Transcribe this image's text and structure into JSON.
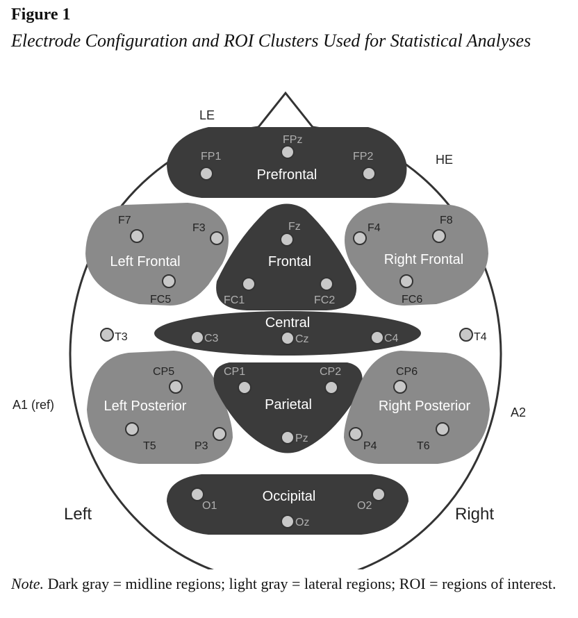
{
  "figure": {
    "label": "Figure 1",
    "title": "Electrode Configuration and ROI Clusters Used for Statistical Analyses"
  },
  "head": {
    "reference_labels": {
      "le": "LE",
      "he": "HE",
      "a1": "A1 (ref)",
      "a2": "A2"
    },
    "side_labels": {
      "left": "Left",
      "right": "Right"
    }
  },
  "regions": {
    "prefrontal": "Prefrontal",
    "left_frontal": "Left Frontal",
    "frontal": "Frontal",
    "right_frontal": "Right Frontal",
    "central": "Central",
    "left_posterior": "Left Posterior",
    "parietal": "Parietal",
    "right_posterior": "Right Posterior",
    "occipital": "Occipital"
  },
  "electrodes": {
    "FPz": "FPz",
    "FP1": "FP1",
    "FP2": "FP2",
    "F7": "F7",
    "F3": "F3",
    "FC5": "FC5",
    "Fz": "Fz",
    "FC1": "FC1",
    "FC2": "FC2",
    "F4": "F4",
    "F8": "F8",
    "FC6": "FC6",
    "T3": "T3",
    "C3": "C3",
    "Cz": "Cz",
    "C4": "C4",
    "T4": "T4",
    "CP5": "CP5",
    "T5": "T5",
    "P3": "P3",
    "CP1": "CP1",
    "CP2": "CP2",
    "Pz": "Pz",
    "CP6": "CP6",
    "P4": "P4",
    "T6": "T6",
    "O1": "O1",
    "O2": "O2",
    "Oz": "Oz"
  },
  "note": {
    "label": "Note.",
    "text": " Dark gray = midline regions; light gray = lateral regions; ROI = regions of interest."
  }
}
